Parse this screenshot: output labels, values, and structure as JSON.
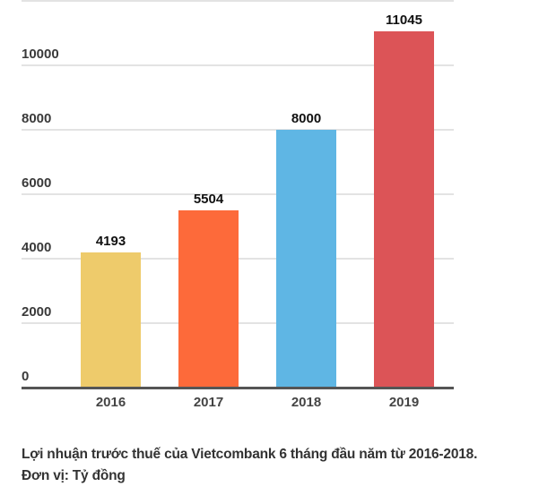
{
  "chart_data": {
    "type": "bar",
    "categories": [
      "2016",
      "2017",
      "2018",
      "2019"
    ],
    "values": [
      4193,
      5504,
      8000,
      11045
    ],
    "colors": [
      "#eecb6b",
      "#fd6a3a",
      "#5fb6e4",
      "#dc5457"
    ],
    "data_labels": [
      "4193",
      "5504",
      "8000",
      "11045"
    ],
    "title": "",
    "xlabel": "",
    "ylabel": "",
    "ylim": [
      0,
      12000
    ],
    "yticks": [
      0,
      2000,
      4000,
      6000,
      8000,
      10000
    ],
    "ytick_labels": [
      "0",
      "2000",
      "4000",
      "6000",
      "8000",
      "10000"
    ],
    "grid": true,
    "legend": null
  },
  "caption": {
    "line1": "Lợi nhuận trước thuế của Vietcombank 6 tháng đầu năm từ 2016-2018.",
    "line2": "Đơn vị: Tỷ đồng"
  }
}
